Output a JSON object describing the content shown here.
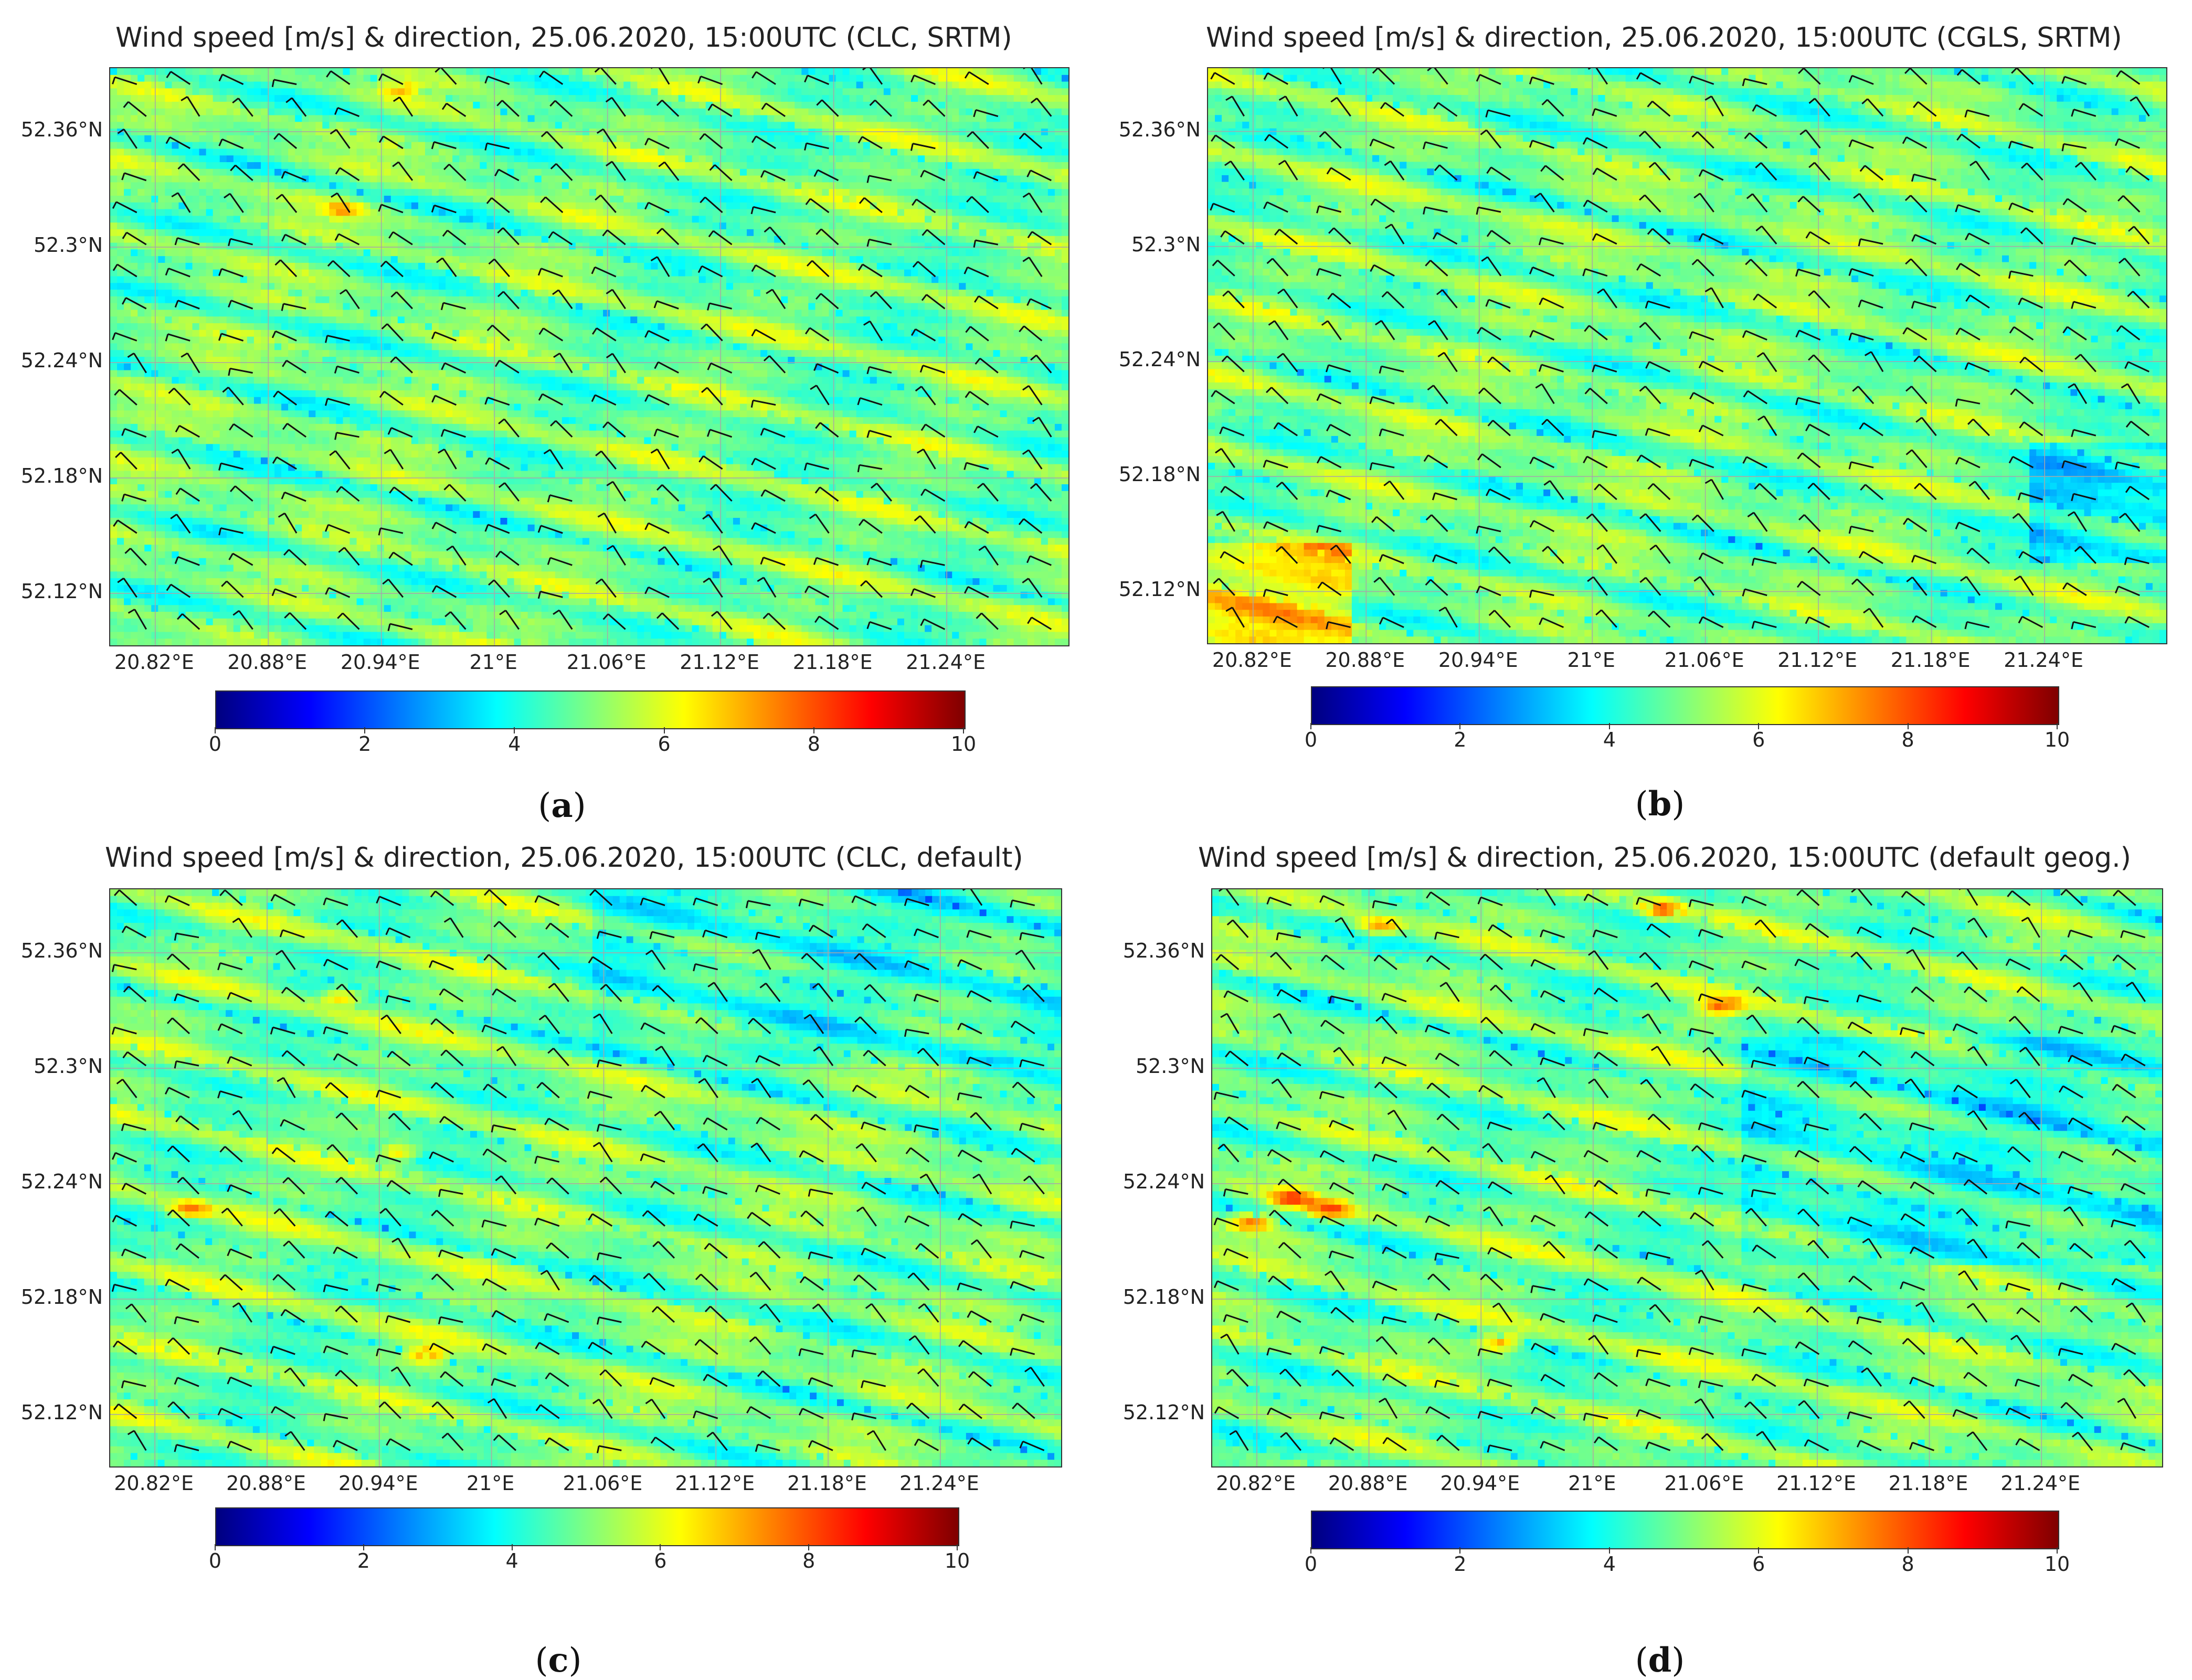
{
  "colormap": {
    "name": "jet",
    "stops": [
      "#00007f",
      "#0000ff",
      "#007fff",
      "#00ffff",
      "#7fff7f",
      "#ffff00",
      "#ff7f00",
      "#ff0000",
      "#7f0000"
    ]
  },
  "panels": [
    {
      "letter": "a",
      "title": "Wind speed [m/s] & direction, 25.06.2020, 15:00UTC (CLC, SRTM)",
      "lat_labels": [
        "52.36°N",
        "52.3°N",
        "52.24°N",
        "52.18°N",
        "52.12°N"
      ],
      "lon_labels": [
        "20.82°E",
        "20.88°E",
        "20.94°E",
        "21°E",
        "21.06°E",
        "21.12°E",
        "21.18°E",
        "21.24°E"
      ],
      "colorbar": {
        "ticks": [
          "0",
          "2",
          "4",
          "6",
          "8",
          "10"
        ],
        "min": 0,
        "max": 10,
        "unit": "m/s"
      }
    },
    {
      "letter": "b",
      "title": "Wind speed [m/s] & direction, 25.06.2020, 15:00UTC (CGLS, SRTM)",
      "lat_labels": [
        "52.36°N",
        "52.3°N",
        "52.24°N",
        "52.18°N",
        "52.12°N"
      ],
      "lon_labels": [
        "20.82°E",
        "20.88°E",
        "20.94°E",
        "21°E",
        "21.06°E",
        "21.12°E",
        "21.18°E",
        "21.24°E"
      ],
      "colorbar": {
        "ticks": [
          "0",
          "2",
          "4",
          "6",
          "8",
          "10"
        ],
        "min": 0,
        "max": 10,
        "unit": "m/s"
      }
    },
    {
      "letter": "c",
      "title": "Wind speed [m/s] & direction, 25.06.2020, 15:00UTC (CLC, default)",
      "lat_labels": [
        "52.36°N",
        "52.3°N",
        "52.24°N",
        "52.18°N",
        "52.12°N"
      ],
      "lon_labels": [
        "20.82°E",
        "20.88°E",
        "20.94°E",
        "21°E",
        "21.06°E",
        "21.12°E",
        "21.18°E",
        "21.24°E"
      ],
      "colorbar": {
        "ticks": [
          "0",
          "2",
          "4",
          "6",
          "8",
          "10"
        ],
        "min": 0,
        "max": 10,
        "unit": "m/s"
      }
    },
    {
      "letter": "d",
      "title": "Wind speed [m/s] & direction, 25.06.2020, 15:00UTC (default geog.)",
      "lat_labels": [
        "52.36°N",
        "52.3°N",
        "52.24°N",
        "52.18°N",
        "52.12°N"
      ],
      "lon_labels": [
        "20.82°E",
        "20.88°E",
        "20.94°E",
        "21°E",
        "21.06°E",
        "21.12°E",
        "21.18°E",
        "21.24°E"
      ],
      "colorbar": {
        "ticks": [
          "0",
          "2",
          "4",
          "6",
          "8",
          "10"
        ],
        "min": 0,
        "max": 10,
        "unit": "m/s"
      }
    }
  ]
}
